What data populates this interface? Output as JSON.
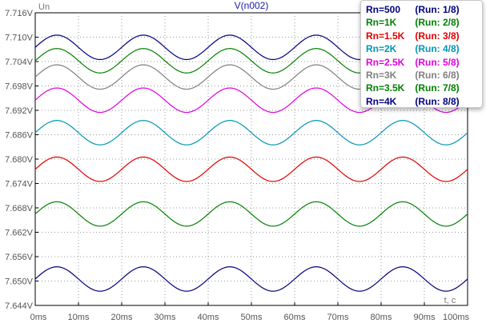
{
  "chart_data": {
    "type": "line",
    "title": "V(n002)",
    "y_unit_label": "Un",
    "x_unit_label": "t, c",
    "y_ticks": [
      "7.716V",
      "7.710V",
      "7.704V",
      "7.698V",
      "7.692V",
      "7.686V",
      "7.680V",
      "7.674V",
      "7.668V",
      "7.662V",
      "7.656V",
      "7.650V",
      "7.644V"
    ],
    "x_ticks": [
      "0ms",
      "10ms",
      "20ms",
      "30ms",
      "40ms",
      "50ms",
      "60ms",
      "70ms",
      "80ms",
      "90ms",
      "100ms"
    ],
    "xlim": [
      0,
      100
    ],
    "ylim": [
      7.644,
      7.716
    ],
    "grid": true,
    "legend_position": "top-right",
    "waveform": "sine",
    "period_ms": 20,
    "amplitude_V": 0.003,
    "x": [
      0,
      5,
      10,
      15,
      20,
      25,
      30,
      35,
      40,
      45,
      50,
      55,
      60,
      65,
      70,
      75,
      80,
      85,
      90,
      95,
      100
    ],
    "series": [
      {
        "name": "Rn=500",
        "run": "(Run: 1/8)",
        "color": "#000080",
        "values": [
          7.7075,
          7.7105,
          7.7075,
          7.7045,
          7.7075,
          7.7105,
          7.7075,
          7.7045,
          7.7075,
          7.7105,
          7.7075,
          7.7045,
          7.7075,
          7.7105,
          7.7075,
          7.7045,
          7.7075,
          7.7105,
          7.7075,
          7.7045,
          7.7075
        ]
      },
      {
        "name": "Rn=1K",
        "run": "(Run: 2/8)",
        "color": "#008000",
        "values": [
          7.7042,
          7.7072,
          7.7042,
          7.7012,
          7.7042,
          7.7072,
          7.7042,
          7.7012,
          7.7042,
          7.7072,
          7.7042,
          7.7012,
          7.7042,
          7.7072,
          7.7042,
          7.7012,
          7.7042,
          7.7072,
          7.7042,
          7.7012,
          7.7042
        ]
      },
      {
        "name": "Rn=1.5K",
        "run": "(Run: 3/8)",
        "color": "#e00000",
        "values": [
          7.6775,
          7.6805,
          7.6775,
          7.6745,
          7.6775,
          7.6805,
          7.6775,
          7.6745,
          7.6775,
          7.6805,
          7.6775,
          7.6745,
          7.6775,
          7.6805,
          7.6775,
          7.6745,
          7.6775,
          7.6805,
          7.6775,
          7.6745,
          7.6775
        ]
      },
      {
        "name": "Rn=2K",
        "run": "(Run: 4/8)",
        "color": "#0096b4",
        "values": [
          7.6865,
          7.6895,
          7.6865,
          7.6835,
          7.6865,
          7.6895,
          7.6865,
          7.6835,
          7.6865,
          7.6895,
          7.6865,
          7.6835,
          7.6865,
          7.6895,
          7.6865,
          7.6835,
          7.6865,
          7.6895,
          7.6865,
          7.6835,
          7.6865
        ]
      },
      {
        "name": "Rn=2.5K",
        "run": "(Run: 5/8)",
        "color": "#e000e0",
        "values": [
          7.6945,
          7.6975,
          7.6945,
          7.6915,
          7.6945,
          7.6975,
          7.6945,
          7.6915,
          7.6945,
          7.6975,
          7.6945,
          7.6915,
          7.6945,
          7.6975,
          7.6945,
          7.6915,
          7.6945,
          7.6975,
          7.6945,
          7.6915,
          7.6945
        ]
      },
      {
        "name": "Rn=3K",
        "run": "(Run: 6/8)",
        "color": "#808080",
        "values": [
          7.7002,
          7.7032,
          7.7002,
          7.6972,
          7.7002,
          7.7032,
          7.7002,
          7.6972,
          7.7002,
          7.7032,
          7.7002,
          7.6972,
          7.7002,
          7.7032,
          7.7002,
          7.6972,
          7.7002,
          7.7032,
          7.7002,
          7.6972,
          7.7002
        ]
      },
      {
        "name": "Rn=3.5K",
        "run": "(Run: 7/8)",
        "color": "#008000",
        "values": [
          7.6665,
          7.6695,
          7.6665,
          7.6635,
          7.6665,
          7.6695,
          7.6665,
          7.6635,
          7.6665,
          7.6695,
          7.6665,
          7.6635,
          7.6665,
          7.6695,
          7.6665,
          7.6635,
          7.6665,
          7.6695,
          7.6665,
          7.6635,
          7.6665
        ]
      },
      {
        "name": "Rn=4K",
        "run": "(Run: 8/8)",
        "color": "#000080",
        "values": [
          7.6505,
          7.6535,
          7.6505,
          7.6475,
          7.6505,
          7.6535,
          7.6505,
          7.6475,
          7.6505,
          7.6535,
          7.6505,
          7.6475,
          7.6505,
          7.6535,
          7.6505,
          7.6475,
          7.6505,
          7.6535,
          7.6505,
          7.6475,
          7.6505
        ]
      }
    ]
  }
}
